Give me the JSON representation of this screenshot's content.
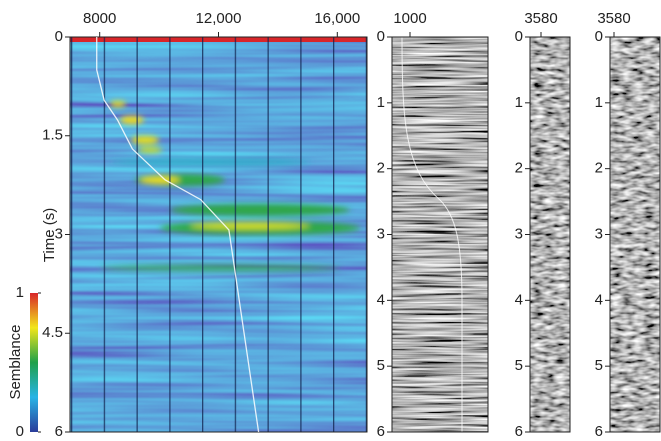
{
  "chart_data": [
    {
      "type": "heatmap",
      "xlim": [
        7000,
        17000
      ],
      "xticks": [
        8000,
        {
          "value": 12000,
          "label": "12,000"
        },
        {
          "value": 16000,
          "label": "16,000"
        }
      ],
      "ylim": [
        0,
        6
      ],
      "yticks": [
        0,
        1.5,
        3,
        4.5,
        6
      ],
      "ylabel": "Time (s)",
      "colorbar": {
        "label": "Semblance",
        "lim": [
          0,
          1
        ],
        "ticks": [
          0,
          1
        ]
      },
      "pick": {
        "color": "#ffffff",
        "x": [
          7900,
          7900,
          8150,
          8600,
          9100,
          10200,
          11400,
          12350,
          13350
        ],
        "y": [
          0,
          0.5,
          0.96,
          1.26,
          1.7,
          2.17,
          2.47,
          2.93,
          6
        ]
      }
    },
    {
      "type": "gather",
      "offset": 1000,
      "ylim": [
        0,
        6
      ],
      "yticks": [
        0,
        1,
        2,
        3,
        4,
        5,
        6
      ]
    },
    {
      "type": "gather",
      "offset": 3580,
      "ylim": [
        0,
        6
      ],
      "yticks": [
        0,
        1,
        2,
        3,
        4,
        5,
        6
      ]
    },
    {
      "type": "gather",
      "offset": 3580,
      "ylim": [
        0,
        6
      ],
      "yticks": [
        0,
        1,
        2,
        3,
        4,
        5,
        6
      ]
    }
  ]
}
